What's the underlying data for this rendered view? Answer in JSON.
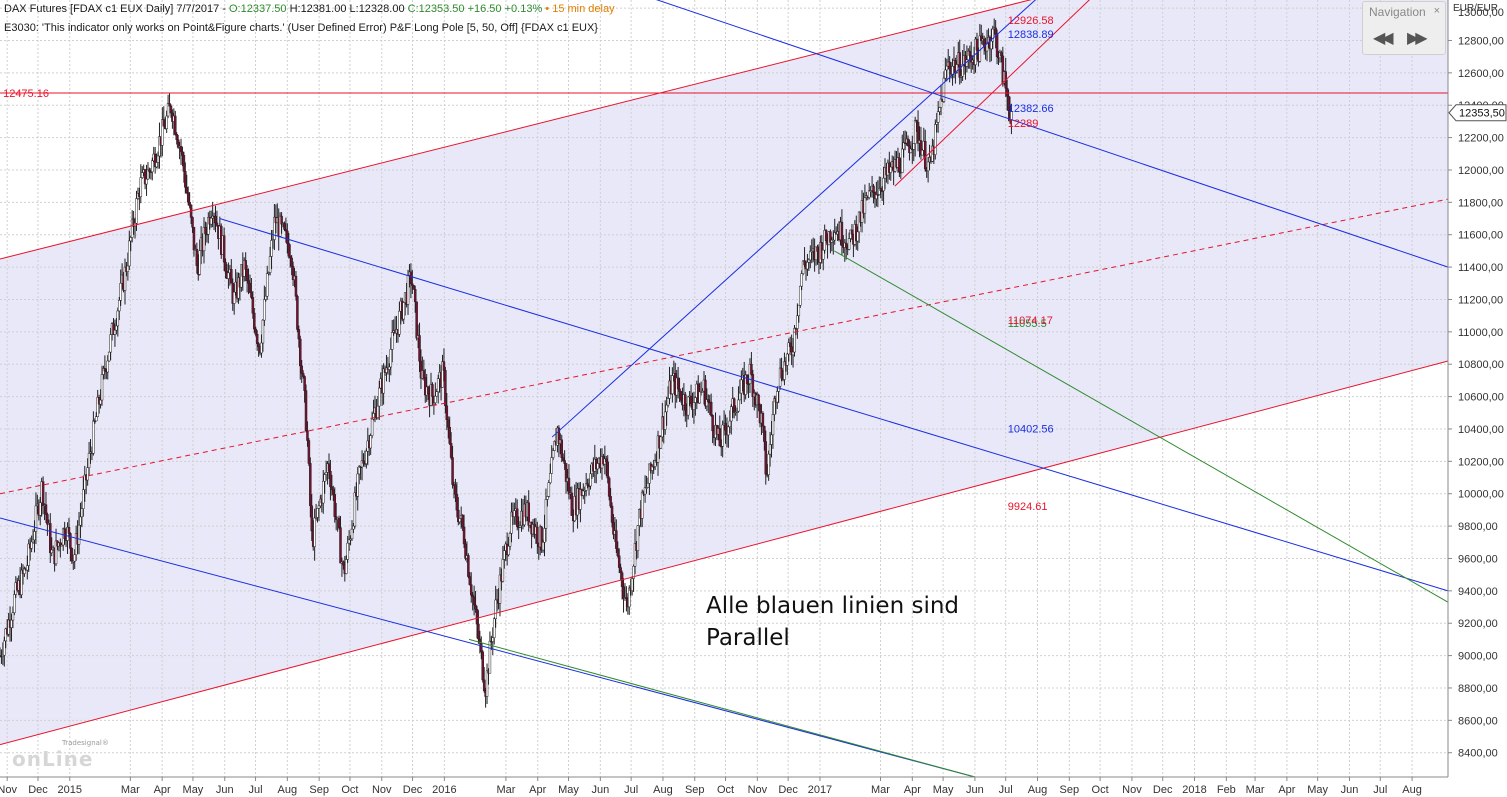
{
  "header": {
    "line1": {
      "instrument": "DAX Futures [FDAX c1 EUX Daily] 7/7/2017",
      "open": "O:12337.50",
      "high": "H:12381.00",
      "low": "L:12328.00",
      "close": "C:12353.50",
      "change": "+16.50",
      "change_pct": "+0.13%",
      "delay": "15 min delay"
    },
    "line2": "E3030: 'This indicator only works on Point&Figure charts.' (User Defined Error) P&F Long Pole [5, 50, Off] {FDAX c1 EUX}"
  },
  "navigation": {
    "title": "Navigation",
    "close": "×",
    "back": "◀◀",
    "forward": "▶▶"
  },
  "annotation": {
    "line1": "Alle blauen linien sind",
    "line2": "Parallel"
  },
  "logo": {
    "small": "Tradesignal®",
    "main": "onLine"
  },
  "colors": {
    "red_line": "#e8142c",
    "blue_line": "#1a2ee0",
    "green_line": "#2e8b2e",
    "band_fill": "#e4e4f8",
    "grid": "#d0d0d0",
    "candle": "#7a1030"
  },
  "chart_data": {
    "type": "candlestick",
    "currency_label": "EUR/EUR",
    "y_axis": {
      "min": 8250,
      "max": 13050,
      "ticks": [
        13000,
        12800,
        12600,
        12400,
        12200,
        12000,
        11800,
        11600,
        11400,
        11200,
        11000,
        10800,
        10600,
        10400,
        10200,
        10000,
        9800,
        9600,
        9400,
        9200,
        9000,
        8800,
        8600,
        8400
      ],
      "tick_labels": [
        "13000,00",
        "12800,00",
        "12600,00",
        "12400,00",
        "12200,00",
        "12000,00",
        "11800,00",
        "11600,00",
        "11400,00",
        "11200,00",
        "11000,00",
        "10800,00",
        "10600,00",
        "10400,00",
        "10200,00",
        "10000,00",
        "9800,00",
        "9600,00",
        "9400,00",
        "9200,00",
        "9000,00",
        "8800,00",
        "8600,00",
        "8400,00"
      ]
    },
    "last_price": {
      "value": 12353.5,
      "label": "12353,50"
    },
    "x_axis": {
      "start": "2014-10-25",
      "end": "2018-09-05",
      "ticks": [
        {
          "date": "2014-11-01",
          "label": "Nov"
        },
        {
          "date": "2014-12-01",
          "label": "Dec"
        },
        {
          "date": "2015-01-01",
          "label": "2015"
        },
        {
          "date": "2015-03-01",
          "label": "Mar"
        },
        {
          "date": "2015-04-01",
          "label": "Apr"
        },
        {
          "date": "2015-05-01",
          "label": "May"
        },
        {
          "date": "2015-06-01",
          "label": "Jun"
        },
        {
          "date": "2015-07-01",
          "label": "Jul"
        },
        {
          "date": "2015-08-01",
          "label": "Aug"
        },
        {
          "date": "2015-09-01",
          "label": "Sep"
        },
        {
          "date": "2015-10-01",
          "label": "Oct"
        },
        {
          "date": "2015-11-01",
          "label": "Nov"
        },
        {
          "date": "2015-12-01",
          "label": "Dec"
        },
        {
          "date": "2016-01-01",
          "label": "2016"
        },
        {
          "date": "2016-03-01",
          "label": "Mar"
        },
        {
          "date": "2016-04-01",
          "label": "Apr"
        },
        {
          "date": "2016-05-01",
          "label": "May"
        },
        {
          "date": "2016-06-01",
          "label": "Jun"
        },
        {
          "date": "2016-07-01",
          "label": "Jul"
        },
        {
          "date": "2016-08-01",
          "label": "Aug"
        },
        {
          "date": "2016-09-01",
          "label": "Sep"
        },
        {
          "date": "2016-10-01",
          "label": "Oct"
        },
        {
          "date": "2016-11-01",
          "label": "Nov"
        },
        {
          "date": "2016-12-01",
          "label": "Dec"
        },
        {
          "date": "2017-01-01",
          "label": "2017"
        },
        {
          "date": "2017-03-01",
          "label": "Mar"
        },
        {
          "date": "2017-04-01",
          "label": "Apr"
        },
        {
          "date": "2017-05-01",
          "label": "May"
        },
        {
          "date": "2017-06-01",
          "label": "Jun"
        },
        {
          "date": "2017-07-01",
          "label": "Jul"
        },
        {
          "date": "2017-08-01",
          "label": "Aug"
        },
        {
          "date": "2017-09-01",
          "label": "Sep"
        },
        {
          "date": "2017-10-01",
          "label": "Oct"
        },
        {
          "date": "2017-11-01",
          "label": "Nov"
        },
        {
          "date": "2017-12-01",
          "label": "Dec"
        },
        {
          "date": "2018-01-01",
          "label": "2018"
        },
        {
          "date": "2018-02-01",
          "label": "Feb"
        },
        {
          "date": "2018-03-01",
          "label": "Mar"
        },
        {
          "date": "2018-04-01",
          "label": "Apr"
        },
        {
          "date": "2018-05-01",
          "label": "May"
        },
        {
          "date": "2018-06-01",
          "label": "Jun"
        },
        {
          "date": "2018-07-01",
          "label": "Jul"
        },
        {
          "date": "2018-08-01",
          "label": "Aug"
        }
      ]
    },
    "price_path": [
      [
        "2014-10-25",
        9000
      ],
      [
        "2014-11-08",
        9350
      ],
      [
        "2014-11-20",
        9550
      ],
      [
        "2014-12-05",
        10050
      ],
      [
        "2014-12-15",
        9600
      ],
      [
        "2014-12-28",
        9800
      ],
      [
        "2015-01-05",
        9600
      ],
      [
        "2015-01-22",
        10300
      ],
      [
        "2015-02-05",
        10800
      ],
      [
        "2015-02-25",
        11400
      ],
      [
        "2015-03-10",
        11900
      ],
      [
        "2015-03-20",
        12000
      ],
      [
        "2015-04-10",
        12400
      ],
      [
        "2015-04-20",
        12100
      ],
      [
        "2015-05-05",
        11400
      ],
      [
        "2015-05-20",
        11800
      ],
      [
        "2015-06-10",
        11200
      ],
      [
        "2015-06-20",
        11400
      ],
      [
        "2015-07-05",
        10900
      ],
      [
        "2015-07-20",
        11700
      ],
      [
        "2015-08-05",
        11500
      ],
      [
        "2015-08-20",
        10400
      ],
      [
        "2015-08-25",
        9700
      ],
      [
        "2015-09-10",
        10200
      ],
      [
        "2015-09-25",
        9500
      ],
      [
        "2015-10-10",
        10100
      ],
      [
        "2015-10-25",
        10500
      ],
      [
        "2015-11-10",
        10900
      ],
      [
        "2015-11-30",
        11350
      ],
      [
        "2015-12-10",
        10700
      ],
      [
        "2015-12-20",
        10600
      ],
      [
        "2015-12-31",
        10750
      ],
      [
        "2016-01-10",
        10000
      ],
      [
        "2016-01-20",
        9750
      ],
      [
        "2016-02-10",
        8800
      ],
      [
        "2016-02-20",
        9300
      ],
      [
        "2016-03-05",
        9800
      ],
      [
        "2016-03-20",
        9900
      ],
      [
        "2016-04-05",
        9700
      ],
      [
        "2016-04-20",
        10400
      ],
      [
        "2016-05-05",
        9900
      ],
      [
        "2016-05-20",
        10100
      ],
      [
        "2016-06-05",
        10250
      ],
      [
        "2016-06-15",
        9700
      ],
      [
        "2016-06-27",
        9300
      ],
      [
        "2016-07-10",
        9900
      ],
      [
        "2016-07-25",
        10250
      ],
      [
        "2016-08-10",
        10700
      ],
      [
        "2016-08-25",
        10550
      ],
      [
        "2016-09-10",
        10650
      ],
      [
        "2016-09-25",
        10300
      ],
      [
        "2016-10-10",
        10550
      ],
      [
        "2016-10-25",
        10750
      ],
      [
        "2016-11-05",
        10450
      ],
      [
        "2016-11-10",
        10100
      ],
      [
        "2016-11-20",
        10700
      ],
      [
        "2016-12-05",
        10900
      ],
      [
        "2016-12-15",
        11400
      ],
      [
        "2016-12-31",
        11500
      ],
      [
        "2017-01-15",
        11650
      ],
      [
        "2017-01-31",
        11550
      ],
      [
        "2017-02-15",
        11800
      ],
      [
        "2017-03-05",
        11950
      ],
      [
        "2017-03-20",
        12050
      ],
      [
        "2017-04-05",
        12250
      ],
      [
        "2017-04-18",
        12000
      ],
      [
        "2017-05-05",
        12650
      ],
      [
        "2017-05-20",
        12650
      ],
      [
        "2017-06-05",
        12750
      ],
      [
        "2017-06-20",
        12850
      ],
      [
        "2017-06-28",
        12600
      ],
      [
        "2017-07-05",
        12380
      ],
      [
        "2017-07-07",
        12353.5
      ]
    ],
    "lines": [
      {
        "name": "channel-upper",
        "color": "red",
        "style": "solid",
        "from": [
          "2014-10-25",
          11450
        ],
        "to": [
          "2018-09-05",
          13700
        ]
      },
      {
        "name": "channel-lower",
        "color": "red",
        "style": "solid",
        "from": [
          "2014-10-25",
          8450
        ],
        "to": [
          "2018-09-05",
          10820
        ]
      },
      {
        "name": "channel-mid",
        "color": "red",
        "style": "dashed",
        "from": [
          "2014-10-25",
          10000
        ],
        "to": [
          "2018-09-05",
          11820
        ]
      },
      {
        "name": "short-support",
        "color": "red",
        "style": "solid",
        "from": [
          "2017-03-15",
          11900
        ],
        "to": [
          "2017-12-20",
          13600
        ]
      },
      {
        "name": "resistance-horizontal",
        "color": "red",
        "style": "solid",
        "from": [
          "2014-10-25",
          12475.16
        ],
        "to": [
          "2018-09-05",
          12475.16
        ]
      },
      {
        "name": "blue-upper",
        "color": "blue",
        "style": "solid",
        "from": [
          "2015-05-27",
          11700
        ],
        "to": [
          "2018-09-05",
          9400
        ]
      },
      {
        "name": "blue-middle",
        "color": "blue",
        "style": "solid",
        "from": [
          "2016-04-01",
          13300
        ],
        "to": [
          "2018-09-05",
          11400
        ]
      },
      {
        "name": "blue-lower",
        "color": "blue",
        "style": "solid",
        "from": [
          "2014-10-25",
          9850
        ],
        "to": [
          "2017-06-01",
          8250
        ]
      },
      {
        "name": "blue-lower-shadow",
        "color": "green",
        "style": "solid",
        "from": [
          "2016-01-25",
          9100
        ],
        "to": [
          "2017-06-01",
          8250
        ]
      },
      {
        "name": "blue-trend",
        "color": "blue",
        "style": "solid",
        "from": [
          "2016-04-15",
          10350
        ],
        "to": [
          "2017-08-25",
          13200
        ]
      },
      {
        "name": "green-trend",
        "color": "green",
        "style": "solid",
        "from": [
          "2017-01-15",
          11500
        ],
        "to": [
          "2018-09-05",
          9330
        ]
      }
    ],
    "level_labels": [
      {
        "text": "12926.58",
        "color": "red",
        "date": "2017-07-03",
        "value": 12926.58
      },
      {
        "text": "12838.89",
        "color": "blue",
        "date": "2017-07-03",
        "value": 12838.89
      },
      {
        "text": "12475.16",
        "color": "red",
        "date": "2014-10-28",
        "value": 12475.16
      },
      {
        "text": "12382.66",
        "color": "blue",
        "date": "2017-07-03",
        "value": 12382.66
      },
      {
        "text": "12289",
        "color": "red",
        "date": "2017-07-03",
        "value": 12289
      },
      {
        "text": "11055.5",
        "color": "green",
        "date": "2017-07-03",
        "value": 11055.5
      },
      {
        "text": "11074.17",
        "color": "red",
        "date": "2017-07-03",
        "value": 11074.17
      },
      {
        "text": "10402.56",
        "color": "blue",
        "date": "2017-07-03",
        "value": 10402.56
      },
      {
        "text": "9924.61",
        "color": "red",
        "date": "2017-07-03",
        "value": 9924.61
      }
    ]
  }
}
